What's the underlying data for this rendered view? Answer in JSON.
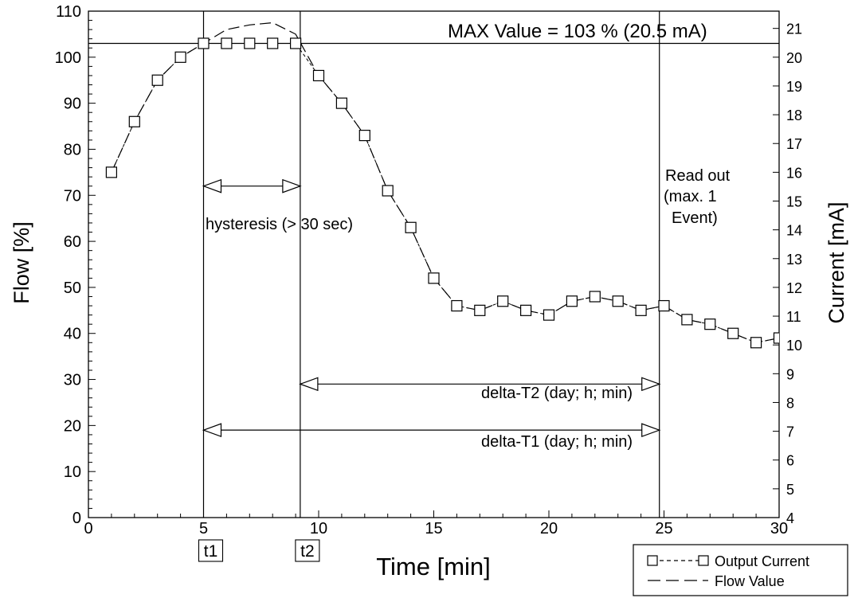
{
  "chart_data": {
    "type": "line",
    "title": "",
    "xlabel": "Time [min]",
    "ylabel": "Flow [%]",
    "y2label": "Current [mA]",
    "xlim": [
      0,
      30
    ],
    "ylim": [
      0,
      110
    ],
    "y2lim": [
      4,
      21.6
    ],
    "x_ticks": [
      0,
      5,
      10,
      15,
      20,
      25,
      30
    ],
    "y_ticks": [
      0,
      10,
      20,
      30,
      40,
      50,
      60,
      70,
      80,
      90,
      100,
      110
    ],
    "y2_ticks": [
      4,
      5,
      6,
      7,
      8,
      9,
      10,
      11,
      12,
      13,
      14,
      15,
      16,
      17,
      18,
      19,
      20,
      21
    ],
    "grid": false,
    "legend_position": "bottom-right",
    "series": [
      {
        "name": "Output Current",
        "style": "dashed-with-square-markers",
        "x": [
          1,
          2,
          3,
          4,
          5,
          6,
          7,
          8,
          9,
          10,
          11,
          12,
          13,
          14,
          15,
          16,
          17,
          18,
          19,
          20,
          21,
          22,
          23,
          24,
          25,
          26,
          27,
          28,
          29,
          30
        ],
        "values": [
          75,
          86,
          95,
          100,
          103,
          103,
          103,
          103,
          103,
          96,
          90,
          83,
          71,
          63,
          52,
          46,
          45,
          47,
          45,
          44,
          47,
          48,
          47,
          45,
          46,
          43,
          42,
          40,
          38,
          39
        ]
      },
      {
        "name": "Flow Value",
        "style": "long-dash",
        "x": [
          1,
          2,
          3,
          4,
          5,
          6,
          7,
          8,
          9,
          10,
          11,
          12,
          13,
          14,
          15,
          16,
          17,
          18,
          19,
          20,
          21,
          22,
          23,
          24,
          25,
          26,
          27,
          28,
          29,
          30
        ],
        "values": [
          75,
          86,
          95,
          100,
          103,
          106,
          107,
          107.5,
          105,
          96,
          90,
          83,
          71,
          63,
          52,
          46,
          45,
          47,
          45,
          44,
          47,
          48,
          47,
          45,
          46,
          43,
          42,
          40,
          38,
          39
        ]
      }
    ],
    "max_line": {
      "value": 103,
      "label": "MAX Value = 103 % (20.5 mA)"
    },
    "verticals": [
      {
        "x": 5,
        "tag": "t1"
      },
      {
        "x": 9.2,
        "tag": "t2"
      },
      {
        "x": 24.8,
        "tag": ""
      }
    ],
    "spans": [
      {
        "from": 5,
        "to": 9.2,
        "y": 72,
        "label": "hysteresis (> 30 sec)"
      },
      {
        "from": 9.2,
        "to": 24.8,
        "y": 29,
        "label": "delta-T2 (day; h; min)"
      },
      {
        "from": 5,
        "to": 24.8,
        "y": 19,
        "label": "delta-T1 (day; h; min)"
      }
    ],
    "annotations": {
      "readout": [
        "Read out",
        "(max. 1",
        "Event)"
      ]
    }
  }
}
